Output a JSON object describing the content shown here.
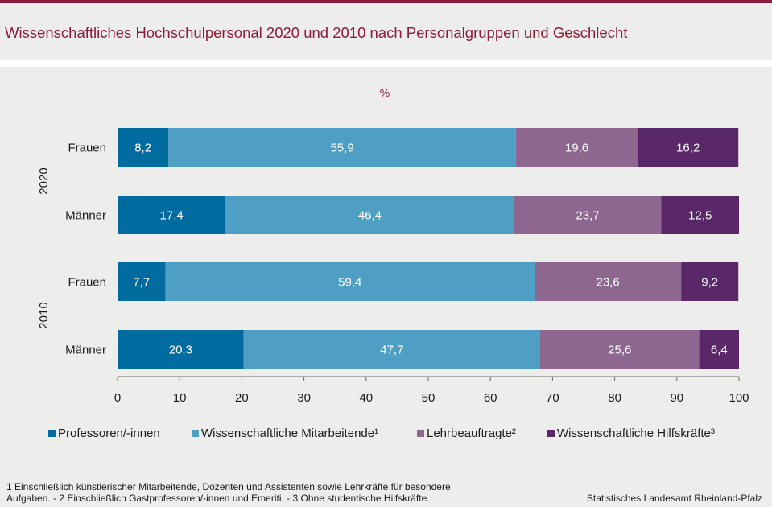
{
  "title": "Wissenschaftliches Hochschulpersonal 2020 und 2010 nach Personalgruppen und Geschlecht",
  "unit_label": "%",
  "colors": {
    "brand": "#8c1d3c",
    "professoren": "#006b9e",
    "mitarbeitende": "#4e9fc3",
    "lehrbeauftragte": "#8e6790",
    "hilfskraefte": "#5a2868"
  },
  "chart_data": {
    "type": "bar",
    "orientation": "horizontal",
    "stacked": true,
    "groups": [
      {
        "label": "2020",
        "rows": [
          "Frauen",
          "Männer"
        ]
      },
      {
        "label": "2010",
        "rows": [
          "Frauen",
          "Männer"
        ]
      }
    ],
    "categories": [
      "Frauen",
      "Männer",
      "Frauen",
      "Männer"
    ],
    "series": [
      {
        "name": "Professoren/-innen",
        "color_key": "professoren",
        "values": [
          8.2,
          17.4,
          7.7,
          20.3
        ],
        "labels": [
          "8,2",
          "17,4",
          "7,7",
          "20,3"
        ]
      },
      {
        "name": "Wissenschaftliche Mitarbeitende¹",
        "color_key": "mitarbeitende",
        "values": [
          55.9,
          46.4,
          59.4,
          47.7
        ],
        "labels": [
          "55,9",
          "46,4",
          "59,4",
          "47,7"
        ]
      },
      {
        "name": "Lehrbeauftragte²",
        "color_key": "lehrbeauftragte",
        "values": [
          19.6,
          23.7,
          23.6,
          25.6
        ],
        "labels": [
          "19,6",
          "23,7",
          "23,6",
          "25,6"
        ]
      },
      {
        "name": "Wissenschaftliche Hilfskräfte³",
        "color_key": "hilfskraefte",
        "values": [
          16.2,
          12.5,
          9.2,
          6.4
        ],
        "labels": [
          "16,2",
          "12,5",
          "9,2",
          "6,4"
        ]
      }
    ],
    "xlim": [
      0,
      100
    ],
    "xticks": [
      0,
      10,
      20,
      30,
      40,
      50,
      60,
      70,
      80,
      90,
      100
    ],
    "grid": false,
    "legend_position": "bottom"
  },
  "footnote": "1 Einschließlich künstlerischer Mitarbeitende, Dozenten und Assistenten sowie Lehrkräfte für besondere\nAufgaben. - 2 Einschließlich Gastprofessoren/-innen  und Emeriti. - 3 Ohne studentische Hilfskräfte.",
  "source": "Statistisches Landesamt Rheinland-Pfalz"
}
